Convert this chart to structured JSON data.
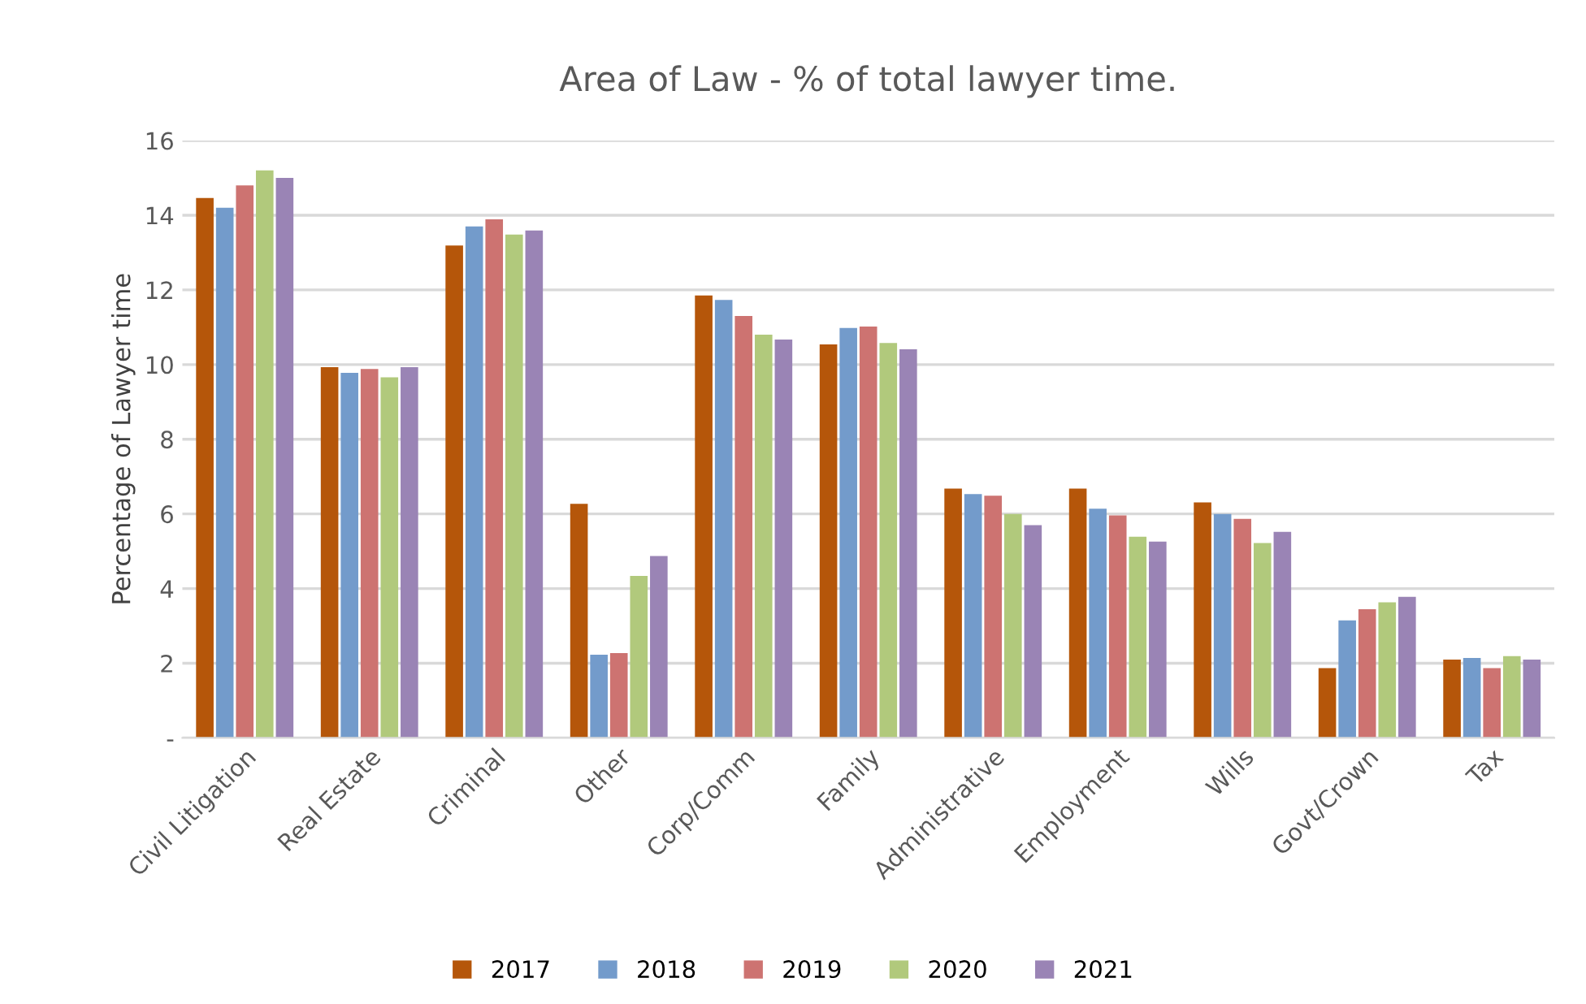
{
  "chart_data": {
    "type": "bar",
    "title": "Area of Law - % of total lawyer time.",
    "ylabel": "Percentage of Lawyer time",
    "categories": [
      "Civil Litigation",
      "Real Estate",
      "Criminal",
      "Other",
      "Corp/Comm",
      "Family",
      "Administrative",
      "Employment",
      "Wills",
      "Govt/Crown",
      "Tax"
    ],
    "series": [
      {
        "name": "2017",
        "color": "#b5560a",
        "values": [
          14.46,
          9.93,
          13.19,
          6.27,
          11.85,
          10.54,
          6.68,
          6.68,
          6.31,
          1.87,
          2.1
        ]
      },
      {
        "name": "2018",
        "color": "#739bcb",
        "values": [
          14.2,
          9.78,
          13.7,
          2.23,
          11.73,
          10.98,
          6.53,
          6.14,
          6.0,
          3.15,
          2.14
        ]
      },
      {
        "name": "2019",
        "color": "#cd7371",
        "values": [
          14.8,
          9.88,
          13.89,
          2.27,
          11.3,
          11.02,
          6.49,
          5.96,
          5.87,
          3.45,
          1.87
        ]
      },
      {
        "name": "2020",
        "color": "#b1c97c",
        "values": [
          15.2,
          9.66,
          13.48,
          4.34,
          10.8,
          10.58,
          6.0,
          5.39,
          5.22,
          3.63,
          2.19
        ]
      },
      {
        "name": "2021",
        "color": "#9a84b5",
        "values": [
          15.0,
          9.93,
          13.59,
          4.87,
          10.67,
          10.41,
          5.7,
          5.26,
          5.52,
          3.78,
          2.1
        ]
      }
    ],
    "ylim": [
      0,
      16
    ],
    "yticks": [
      {
        "value": 0,
        "label": "-"
      },
      2,
      4,
      6,
      8,
      10,
      12,
      14,
      16
    ],
    "grid": "y",
    "legend": "bottom"
  }
}
